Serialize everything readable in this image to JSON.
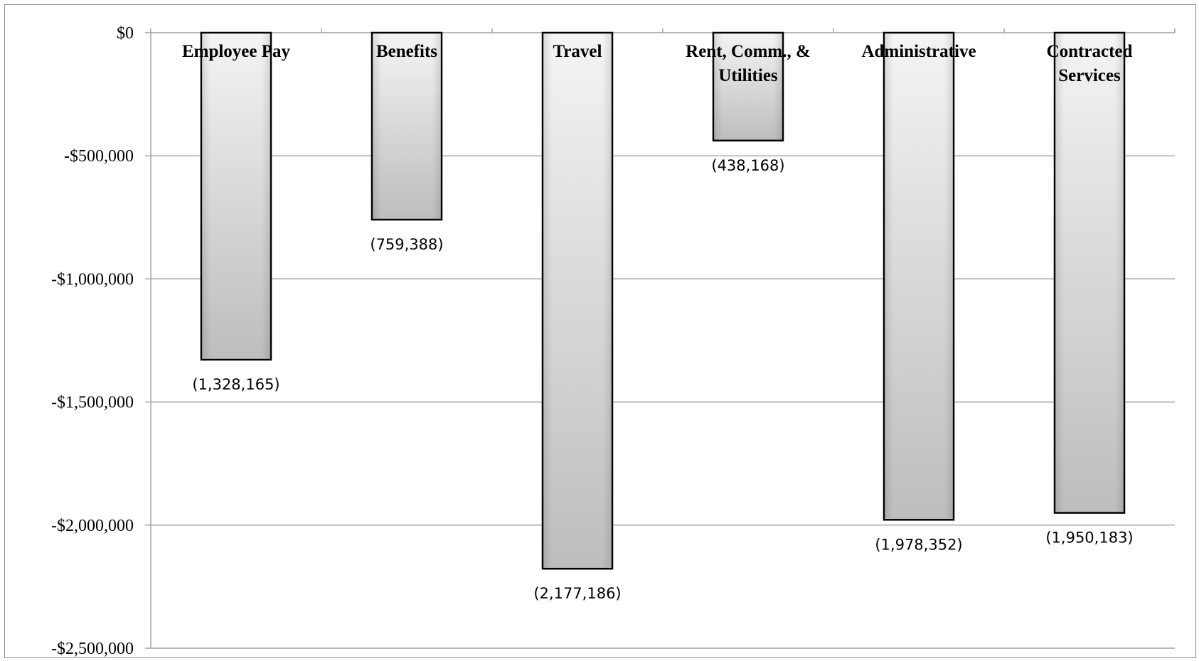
{
  "chart_data": {
    "type": "bar",
    "categories": [
      [
        "Employee Pay"
      ],
      [
        "Benefits"
      ],
      [
        "Travel"
      ],
      [
        "Rent, Comm., &",
        "Utilities"
      ],
      [
        "Administrative"
      ],
      [
        "Contracted",
        "Services"
      ]
    ],
    "values": [
      -1328165,
      -759388,
      -2177186,
      -438168,
      -1978352,
      -1950183
    ],
    "data_labels": [
      "(1,328,165)",
      "(759,388)",
      "(2,177,186)",
      "(438,168)",
      "(1,978,352)",
      "(1,950,183)"
    ],
    "y_ticks": [
      0,
      -500000,
      -1000000,
      -1500000,
      -2000000,
      -2500000
    ],
    "y_tick_labels": [
      "$0",
      "-$500,000",
      "-$1,000,000",
      "-$1,500,000",
      "-$2,000,000",
      "-$2,500,000"
    ],
    "ylim": [
      -2500000,
      0
    ],
    "grid": true,
    "legend": "none",
    "colors": {
      "bar_light": "#f4f4f4",
      "bar_dark": "#bdbdbd",
      "bar_edge": "#000000",
      "grid": "#8c8c8c"
    }
  }
}
